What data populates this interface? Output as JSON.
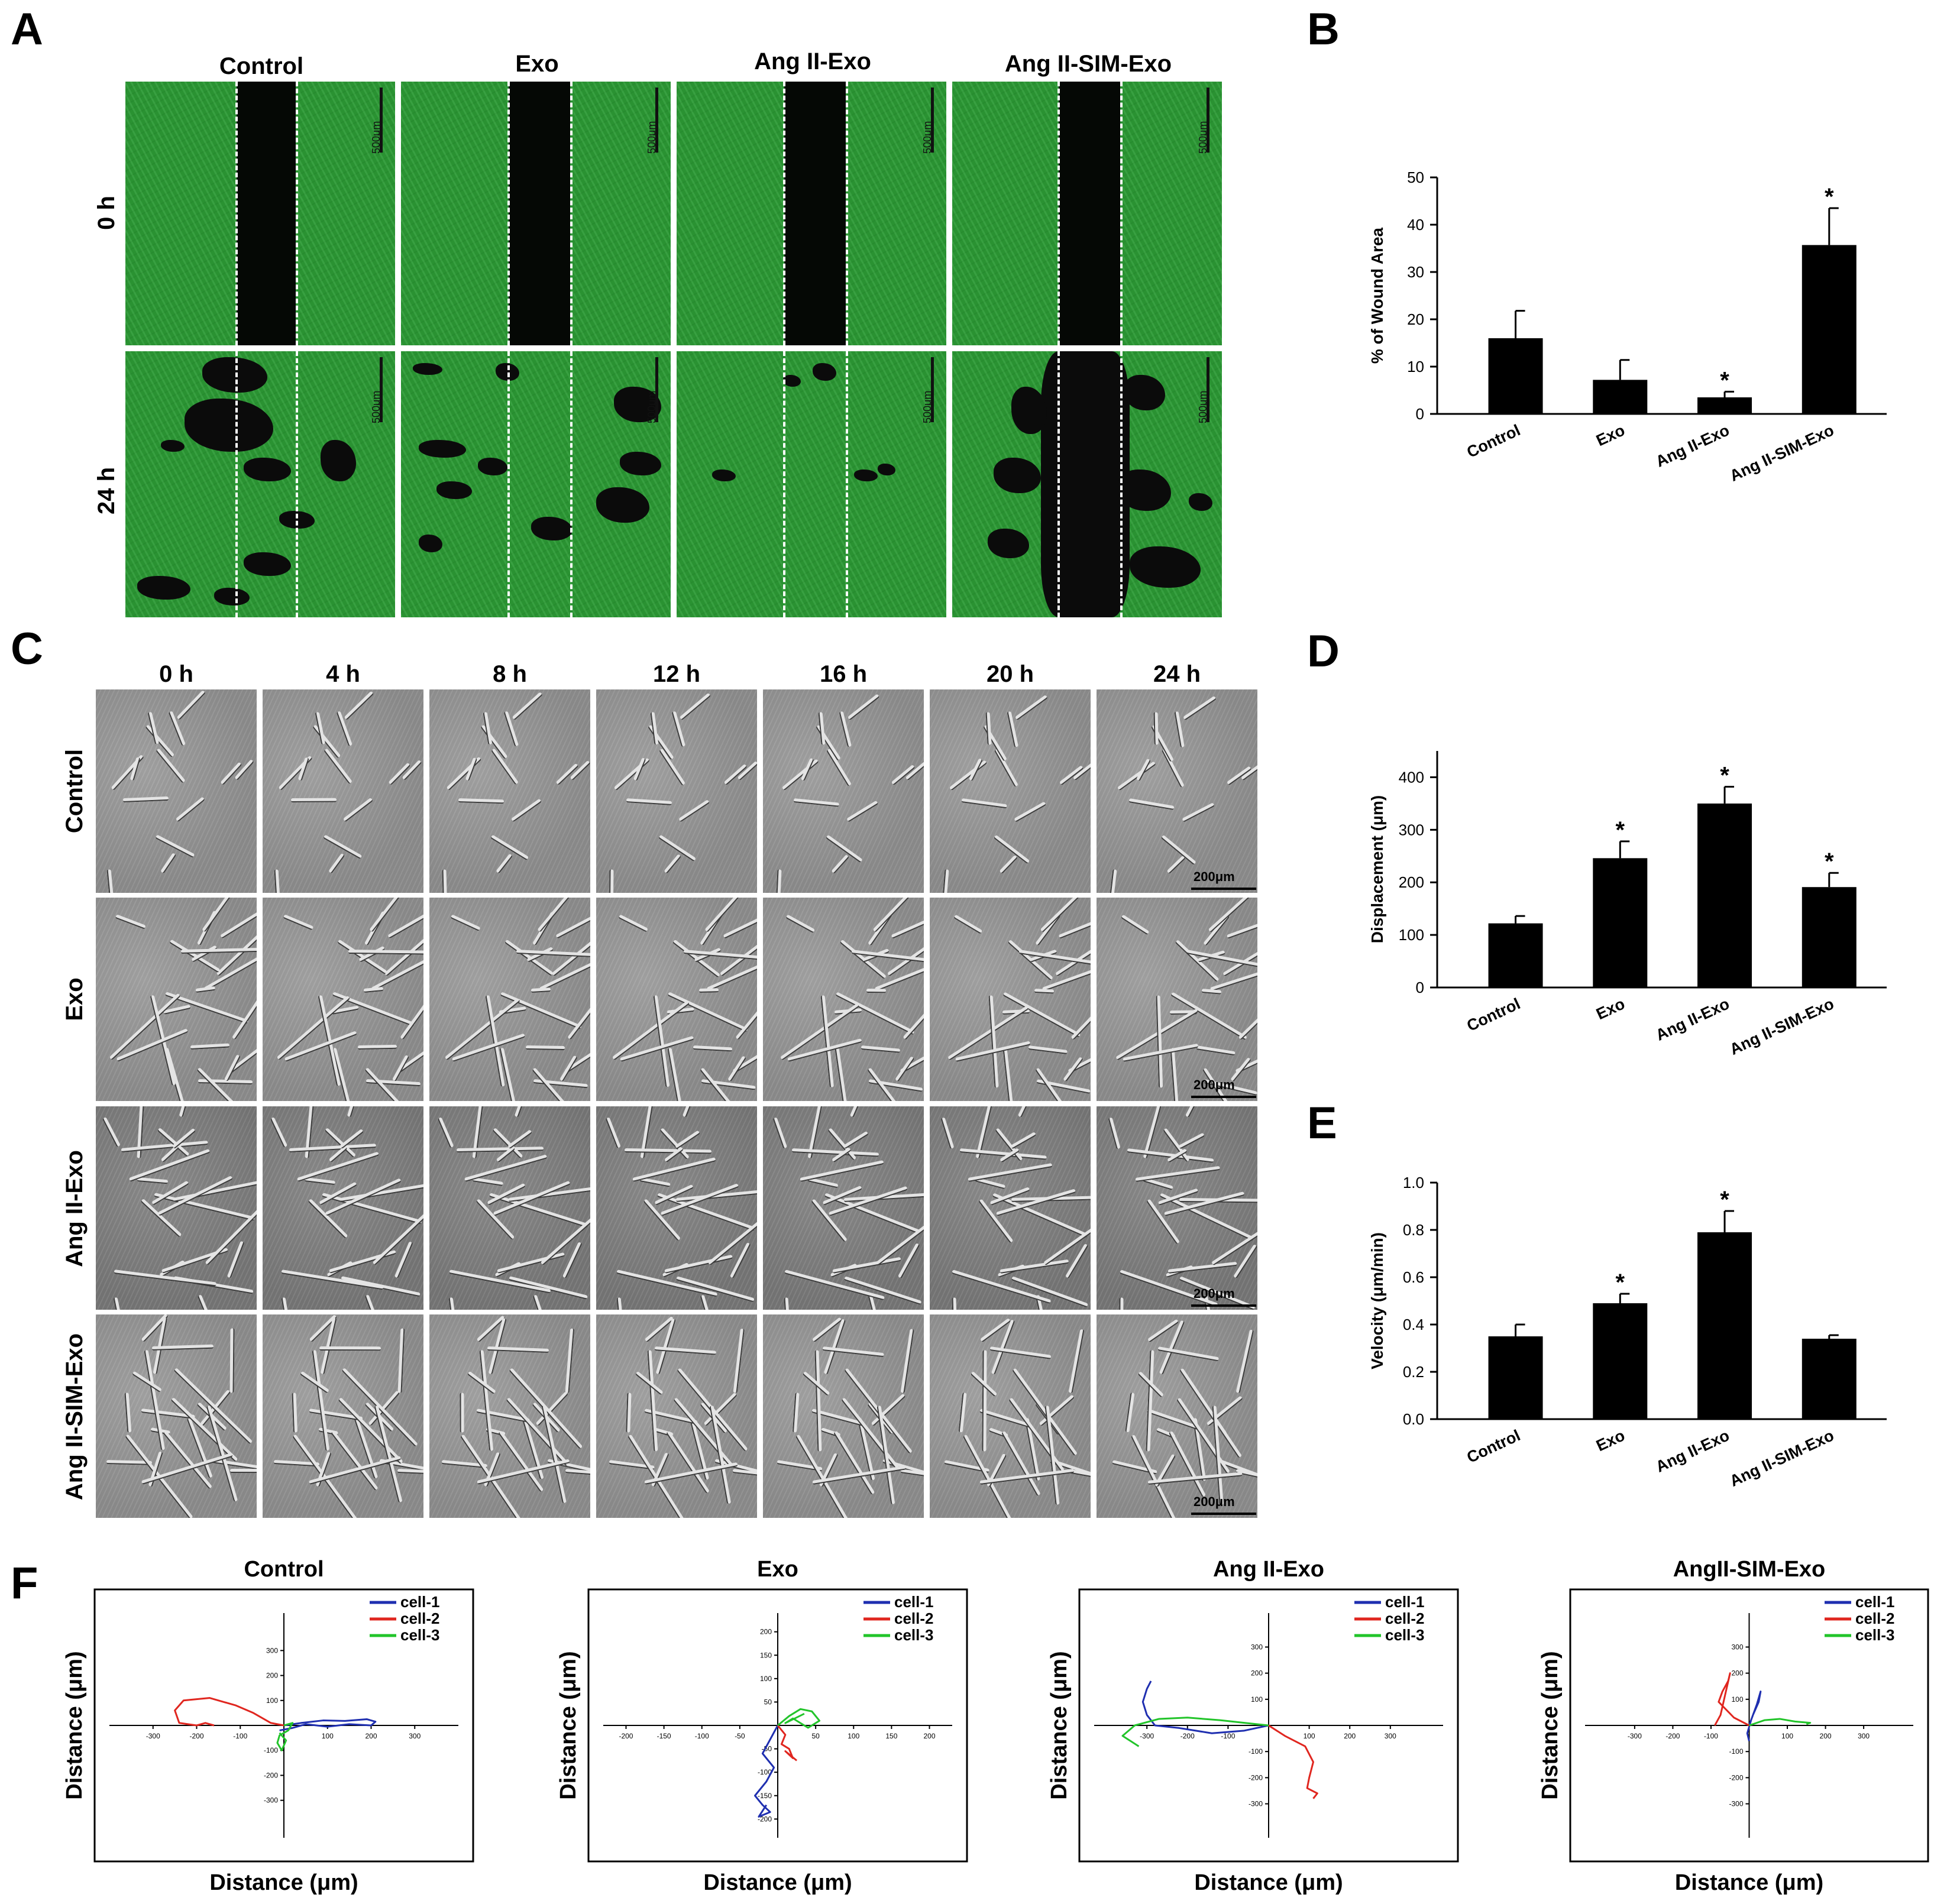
{
  "panels": {
    "A": {
      "letter": "A",
      "columns": [
        "Control",
        "Exo",
        "Ang II-Exo",
        "Ang II-SIM-Exo"
      ],
      "rows": [
        "0 h",
        "24 h"
      ],
      "scale_bar": "500μm"
    },
    "B": {
      "letter": "B"
    },
    "C": {
      "letter": "C",
      "columns": [
        "0 h",
        "4 h",
        "8 h",
        "12 h",
        "16 h",
        "20 h",
        "24 h"
      ],
      "rows": [
        "Control",
        "Exo",
        "Ang II-Exo",
        "Ang II-SIM-Exo"
      ],
      "scale_bar": "200μm"
    },
    "D": {
      "letter": "D"
    },
    "E": {
      "letter": "E"
    },
    "F": {
      "letter": "F",
      "x_label": "Distance (μm)",
      "y_label": "Distance (μm)"
    }
  },
  "chart_data": [
    {
      "id": "B",
      "type": "bar",
      "categories": [
        "Control",
        "Exo",
        "Ang II-Exo",
        "Ang II-SIM-Exo"
      ],
      "values": [
        16,
        7.2,
        3.5,
        35.7
      ],
      "errors": [
        5.8,
        4.2,
        1.2,
        7.8
      ],
      "significance": [
        "",
        "",
        "*",
        "*"
      ],
      "ylabel": "% of Wound Area",
      "ylim": [
        0,
        50
      ],
      "yticks": [
        "0",
        "10",
        "20",
        "30",
        "40",
        "50"
      ]
    },
    {
      "id": "D",
      "type": "bar",
      "categories": [
        "Control",
        "Exo",
        "Ang II-Exo",
        "Ang II-SIM-Exo"
      ],
      "values": [
        122,
        246,
        350,
        191
      ],
      "errors": [
        14,
        32,
        32,
        27
      ],
      "significance": [
        "",
        "*",
        "*",
        "*"
      ],
      "ylabel": "Displacement (μm)",
      "ylim": [
        0,
        450
      ],
      "yticks": [
        "0",
        "100",
        "200",
        "300",
        "400"
      ]
    },
    {
      "id": "E",
      "type": "bar",
      "categories": [
        "Control",
        "Exo",
        "Ang II-Exo",
        "Ang II-SIM-Exo"
      ],
      "values": [
        0.35,
        0.49,
        0.79,
        0.34
      ],
      "errors": [
        0.05,
        0.04,
        0.09,
        0.015
      ],
      "significance": [
        "",
        "*",
        "*",
        ""
      ],
      "ylabel": "Velocity (μm/min)",
      "ylim": [
        0,
        1.0
      ],
      "yticks": [
        "0.0",
        "0.2",
        "0.4",
        "0.6",
        "0.8",
        "1.0"
      ]
    },
    {
      "id": "F1",
      "type": "line",
      "title": "Control",
      "xlim": [
        -400,
        400
      ],
      "ylim": [
        -450,
        450
      ],
      "xticks": [
        "-300",
        "-200",
        "-100",
        "100",
        "200",
        "300"
      ],
      "yticks": [
        "300",
        "200",
        "100",
        "-100",
        "-200",
        "-300"
      ],
      "legend": [
        "cell-1",
        "cell-2",
        "cell-3"
      ],
      "series": [
        {
          "name": "cell-1",
          "color": "#1f2fb0",
          "x": [
            0,
            40,
            90,
            140,
            190,
            210,
            200,
            150,
            100,
            50,
            20,
            -10
          ],
          "y": [
            0,
            10,
            20,
            18,
            25,
            15,
            0,
            5,
            -5,
            5,
            -10,
            -20
          ]
        },
        {
          "name": "cell-2",
          "color": "#e0261f",
          "x": [
            0,
            -30,
            -70,
            -110,
            -170,
            -230,
            -250,
            -240,
            -200,
            -180,
            -160
          ],
          "y": [
            0,
            10,
            50,
            80,
            110,
            100,
            60,
            10,
            0,
            10,
            0
          ]
        },
        {
          "name": "cell-3",
          "color": "#22c42a",
          "x": [
            0,
            20,
            10,
            -10,
            -15,
            -5,
            5,
            -10
          ],
          "y": [
            0,
            10,
            -20,
            -40,
            -70,
            -100,
            -60,
            -30
          ]
        }
      ]
    },
    {
      "id": "F2",
      "type": "line",
      "title": "Exo",
      "xlim": [
        -230,
        230
      ],
      "ylim": [
        -240,
        240
      ],
      "xticks": [
        "-200",
        "-150",
        "-100",
        "-50",
        "50",
        "100",
        "150",
        "200"
      ],
      "yticks": [
        "200",
        "150",
        "100",
        "50",
        "-50",
        "-100",
        "-150",
        "-200"
      ],
      "legend": [
        "cell-1",
        "cell-2",
        "cell-3"
      ],
      "series": [
        {
          "name": "cell-1",
          "color": "#1f2fb0",
          "x": [
            0,
            -10,
            -20,
            -5,
            -15,
            -30,
            -20,
            -10,
            -25,
            -15
          ],
          "y": [
            0,
            -30,
            -60,
            -90,
            -120,
            -150,
            -170,
            -185,
            -195,
            -170
          ]
        },
        {
          "name": "cell-2",
          "color": "#e0261f",
          "x": [
            0,
            10,
            5,
            15,
            20,
            10,
            25
          ],
          "y": [
            0,
            -20,
            -40,
            -50,
            -70,
            -55,
            -75
          ]
        },
        {
          "name": "cell-3",
          "color": "#22c42a",
          "x": [
            0,
            15,
            30,
            45,
            55,
            40,
            20,
            10,
            35
          ],
          "y": [
            0,
            20,
            35,
            30,
            10,
            -5,
            15,
            5,
            25
          ]
        }
      ]
    },
    {
      "id": "F3",
      "type": "line",
      "title": "Ang II-Exo",
      "xlim": [
        -430,
        430
      ],
      "ylim": [
        -430,
        430
      ],
      "xticks": [
        "-300",
        "-200",
        "-100",
        "100",
        "200",
        "300"
      ],
      "yticks": [
        "300",
        "200",
        "100",
        "-100",
        "-200",
        "-300"
      ],
      "legend": [
        "cell-1",
        "cell-2",
        "cell-3"
      ],
      "series": [
        {
          "name": "cell-1",
          "color": "#1f2fb0",
          "x": [
            0,
            -60,
            -140,
            -220,
            -280,
            -300,
            -310,
            -300,
            -290
          ],
          "y": [
            0,
            -20,
            -30,
            -10,
            0,
            40,
            90,
            140,
            170
          ]
        },
        {
          "name": "cell-2",
          "color": "#e0261f",
          "x": [
            0,
            40,
            90,
            110,
            100,
            95,
            120,
            110
          ],
          "y": [
            0,
            -40,
            -80,
            -140,
            -200,
            -240,
            -260,
            -280
          ]
        },
        {
          "name": "cell-3",
          "color": "#22c42a",
          "x": [
            0,
            -60,
            -120,
            -200,
            -270,
            -330,
            -360,
            -340,
            -320
          ],
          "y": [
            0,
            10,
            20,
            30,
            25,
            0,
            -40,
            -60,
            -80
          ]
        }
      ]
    },
    {
      "id": "F4",
      "type": "line",
      "title": "AngII-SIM-Exo",
      "xlim": [
        -430,
        430
      ],
      "ylim": [
        -430,
        430
      ],
      "xticks": [
        "-300",
        "-200",
        "-100",
        "100",
        "200",
        "300"
      ],
      "yticks": [
        "300",
        "200",
        "100",
        "-100",
        "-200",
        "-300"
      ],
      "legend": [
        "cell-1",
        "cell-2",
        "cell-3"
      ],
      "series": [
        {
          "name": "cell-1",
          "color": "#1f2fb0",
          "x": [
            0,
            10,
            25,
            30,
            20,
            5,
            -5,
            0
          ],
          "y": [
            0,
            40,
            90,
            130,
            80,
            20,
            -30,
            -60
          ]
        },
        {
          "name": "cell-2",
          "color": "#e0261f",
          "x": [
            0,
            -40,
            -60,
            -80,
            -70,
            -55,
            -50,
            -75,
            -90
          ],
          "y": [
            0,
            30,
            60,
            90,
            130,
            170,
            200,
            40,
            0
          ]
        },
        {
          "name": "cell-3",
          "color": "#22c42a",
          "x": [
            0,
            40,
            80,
            120,
            160,
            150
          ],
          "y": [
            0,
            20,
            25,
            15,
            10,
            5
          ]
        }
      ]
    }
  ]
}
